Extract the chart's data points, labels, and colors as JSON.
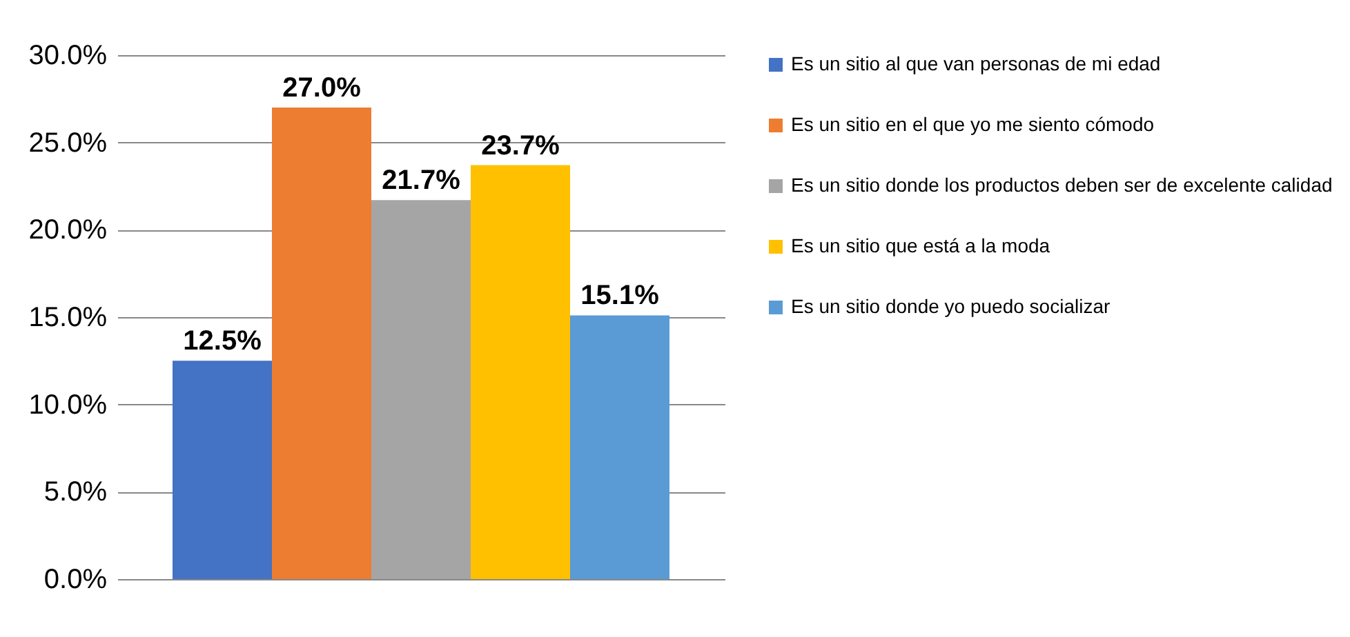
{
  "chart_data": {
    "type": "bar",
    "categories": [
      null
    ],
    "series": [
      {
        "name": "Es un sitio al que van personas de mi edad",
        "color": "#4472c4",
        "values": [
          12.5
        ],
        "value_labels": [
          "12.5%"
        ]
      },
      {
        "name": "Es un sitio en el que yo me siento cómodo",
        "color": "#ed7d31",
        "values": [
          27.0
        ],
        "value_labels": [
          "27.0%"
        ]
      },
      {
        "name": "Es un sitio donde los productos deben ser de excelente calidad",
        "color": "#a5a5a5",
        "values": [
          21.7
        ],
        "value_labels": [
          "21.7%"
        ]
      },
      {
        "name": "Es un sitio que está a la moda",
        "color": "#ffc000",
        "values": [
          23.7
        ],
        "value_labels": [
          "23.7%"
        ]
      },
      {
        "name": "Es un sitio donde yo puedo socializar",
        "color": "#5b9bd5",
        "values": [
          15.1
        ],
        "value_labels": [
          "15.1%"
        ]
      }
    ],
    "ylim": [
      0,
      30
    ],
    "yticks": [
      {
        "value": 0,
        "label": "0.0%"
      },
      {
        "value": 5,
        "label": "5.0%"
      },
      {
        "value": 10,
        "label": "10.0%"
      },
      {
        "value": 15,
        "label": "15.0%"
      },
      {
        "value": 20,
        "label": "20.0%"
      },
      {
        "value": 25,
        "label": "25.0%"
      },
      {
        "value": 30,
        "label": "30.0%"
      }
    ],
    "grid": "y",
    "legend": "right"
  }
}
